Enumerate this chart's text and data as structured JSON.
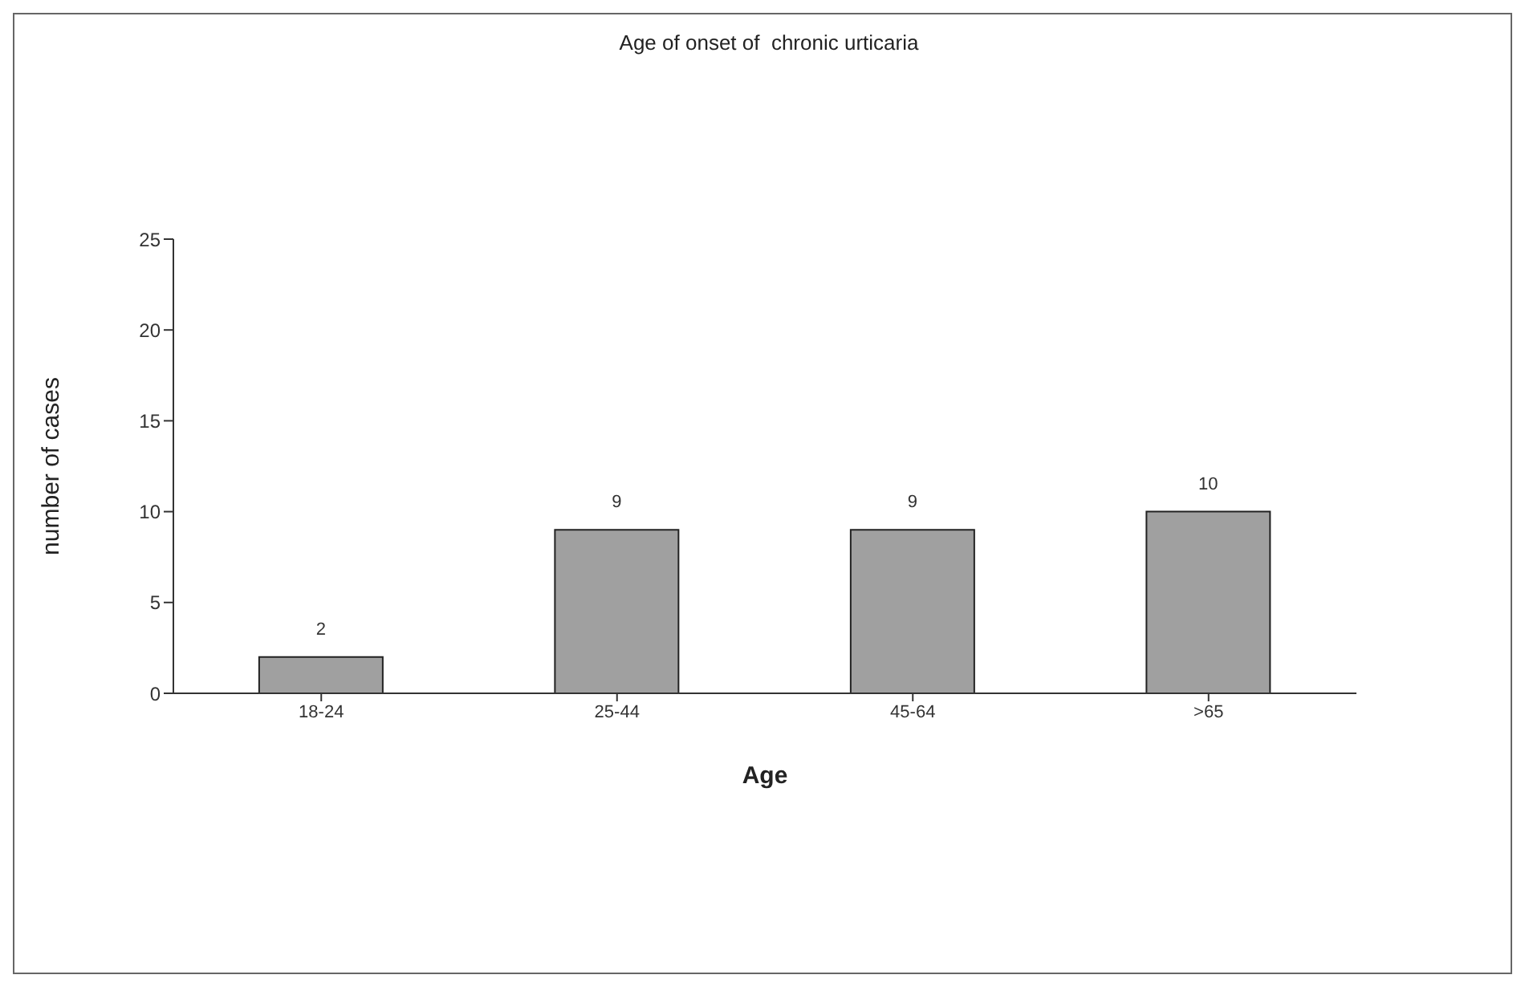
{
  "chart_data": {
    "type": "bar",
    "title": "Age of onset of  chronic urticaria",
    "xlabel": "Age",
    "ylabel": "number of cases",
    "categories": [
      "18-24",
      "25-44",
      "45-64",
      ">65"
    ],
    "values": [
      2,
      9,
      9,
      10
    ],
    "color": "#a0a0a0",
    "ylim": [
      0,
      25
    ],
    "yticks": [
      0,
      5,
      10,
      15,
      20,
      25
    ],
    "grid": false,
    "data_labels": true
  }
}
